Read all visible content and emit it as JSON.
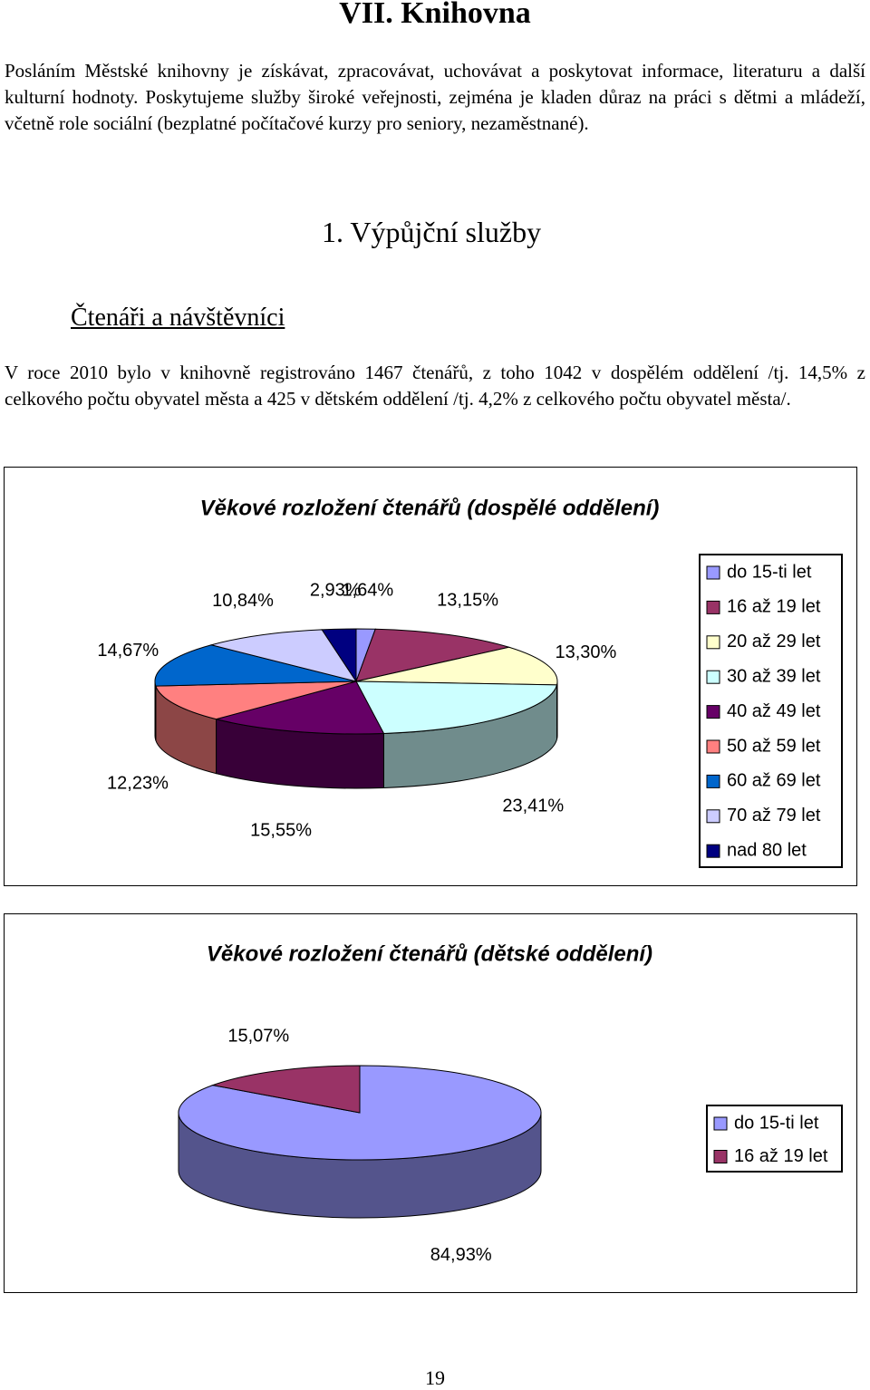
{
  "document": {
    "heading": "VII. Knihovna",
    "intro": "Posláním Městské knihovny je získávat, zpracovávat, uchovávat a poskytovat informace, literaturu a další kulturní hodnoty. Poskytujeme služby široké veřejnosti, zejména je kladen důraz na práci s dětmi a mládeží, včetně role sociální (bezplatné počítačové kurzy pro seniory, nezaměstnané).",
    "section_title": "1. Výpůjční služby",
    "subsection_title": "Čtenáři a návštěvníci",
    "stats_text": "V roce 2010 bylo v knihovně registrováno 1467 čtenářů, z toho 1042 v dospělém oddělení /tj. 14,5% z celkového počtu obyvatel města a 425 v dětském oddělení /tj. 4,2% z celkového počtu obyvatel města/.",
    "page_number": "19"
  },
  "chart_data": [
    {
      "type": "pie",
      "title": "Věkové rozložení čtenářů (dospělé oddělení)",
      "categories": [
        "do 15-ti let",
        "16 až 19 let",
        "20 až 29 let",
        "30 až 39 let",
        "40 až 49 let",
        "50 až 59 let",
        "60 až 69 let",
        "70 až 79 let",
        "nad 80 let"
      ],
      "values": [
        1.64,
        13.15,
        13.3,
        23.41,
        15.55,
        12.23,
        14.67,
        10.84,
        2.93
      ],
      "value_labels": [
        "1,64%",
        "13,15%",
        "13,30%",
        "23,41%",
        "15,55%",
        "12,23%",
        "14,67%",
        "10,84%",
        "2,93%"
      ],
      "colors": [
        "#9999ff",
        "#993366",
        "#ffffcc",
        "#ccffff",
        "#660066",
        "#ff8080",
        "#0066cc",
        "#ccccff",
        "#000080"
      ],
      "legend": "right"
    },
    {
      "type": "pie",
      "title": "Věkové rozložení čtenářů (dětské oddělení)",
      "categories": [
        "do 15-ti let",
        "16 až 19 let"
      ],
      "values": [
        84.93,
        15.07
      ],
      "value_labels": [
        "84,93%",
        "15,07%"
      ],
      "colors": [
        "#9999ff",
        "#993366"
      ],
      "legend": "right"
    }
  ]
}
